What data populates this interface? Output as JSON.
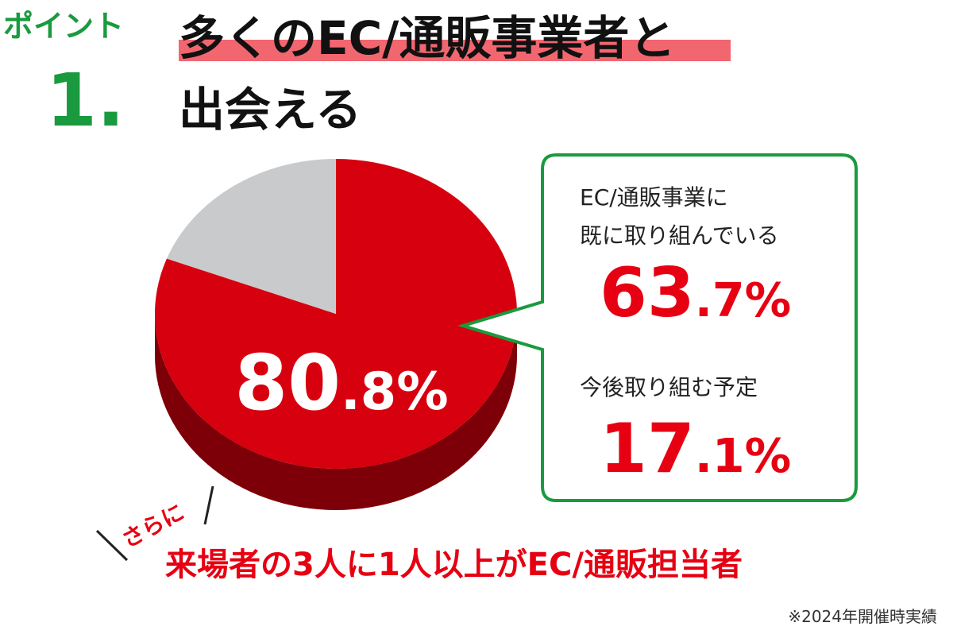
{
  "badge": {
    "label": "ポイント",
    "number": "1."
  },
  "title_lines": [
    "多くのEC/通販事業者と",
    "出会える"
  ],
  "chart_data": {
    "type": "pie",
    "values": [
      80.8,
      19.2
    ],
    "value_labels": [
      "80.8%",
      null
    ],
    "colors": [
      "#d7000f",
      "#c9cacc"
    ]
  },
  "callout": {
    "items": [
      {
        "label_lines": [
          "EC/通販事業に",
          "既に取り組んでいる"
        ],
        "value": "63.7%"
      },
      {
        "label_lines": [
          "今後取り組む予定"
        ],
        "value": "17.1%"
      }
    ]
  },
  "note": {
    "lead": "さらに",
    "text": "来場者の3人に1人以上がEC/通販担当者"
  },
  "footnote": "※2024年開催時実績"
}
